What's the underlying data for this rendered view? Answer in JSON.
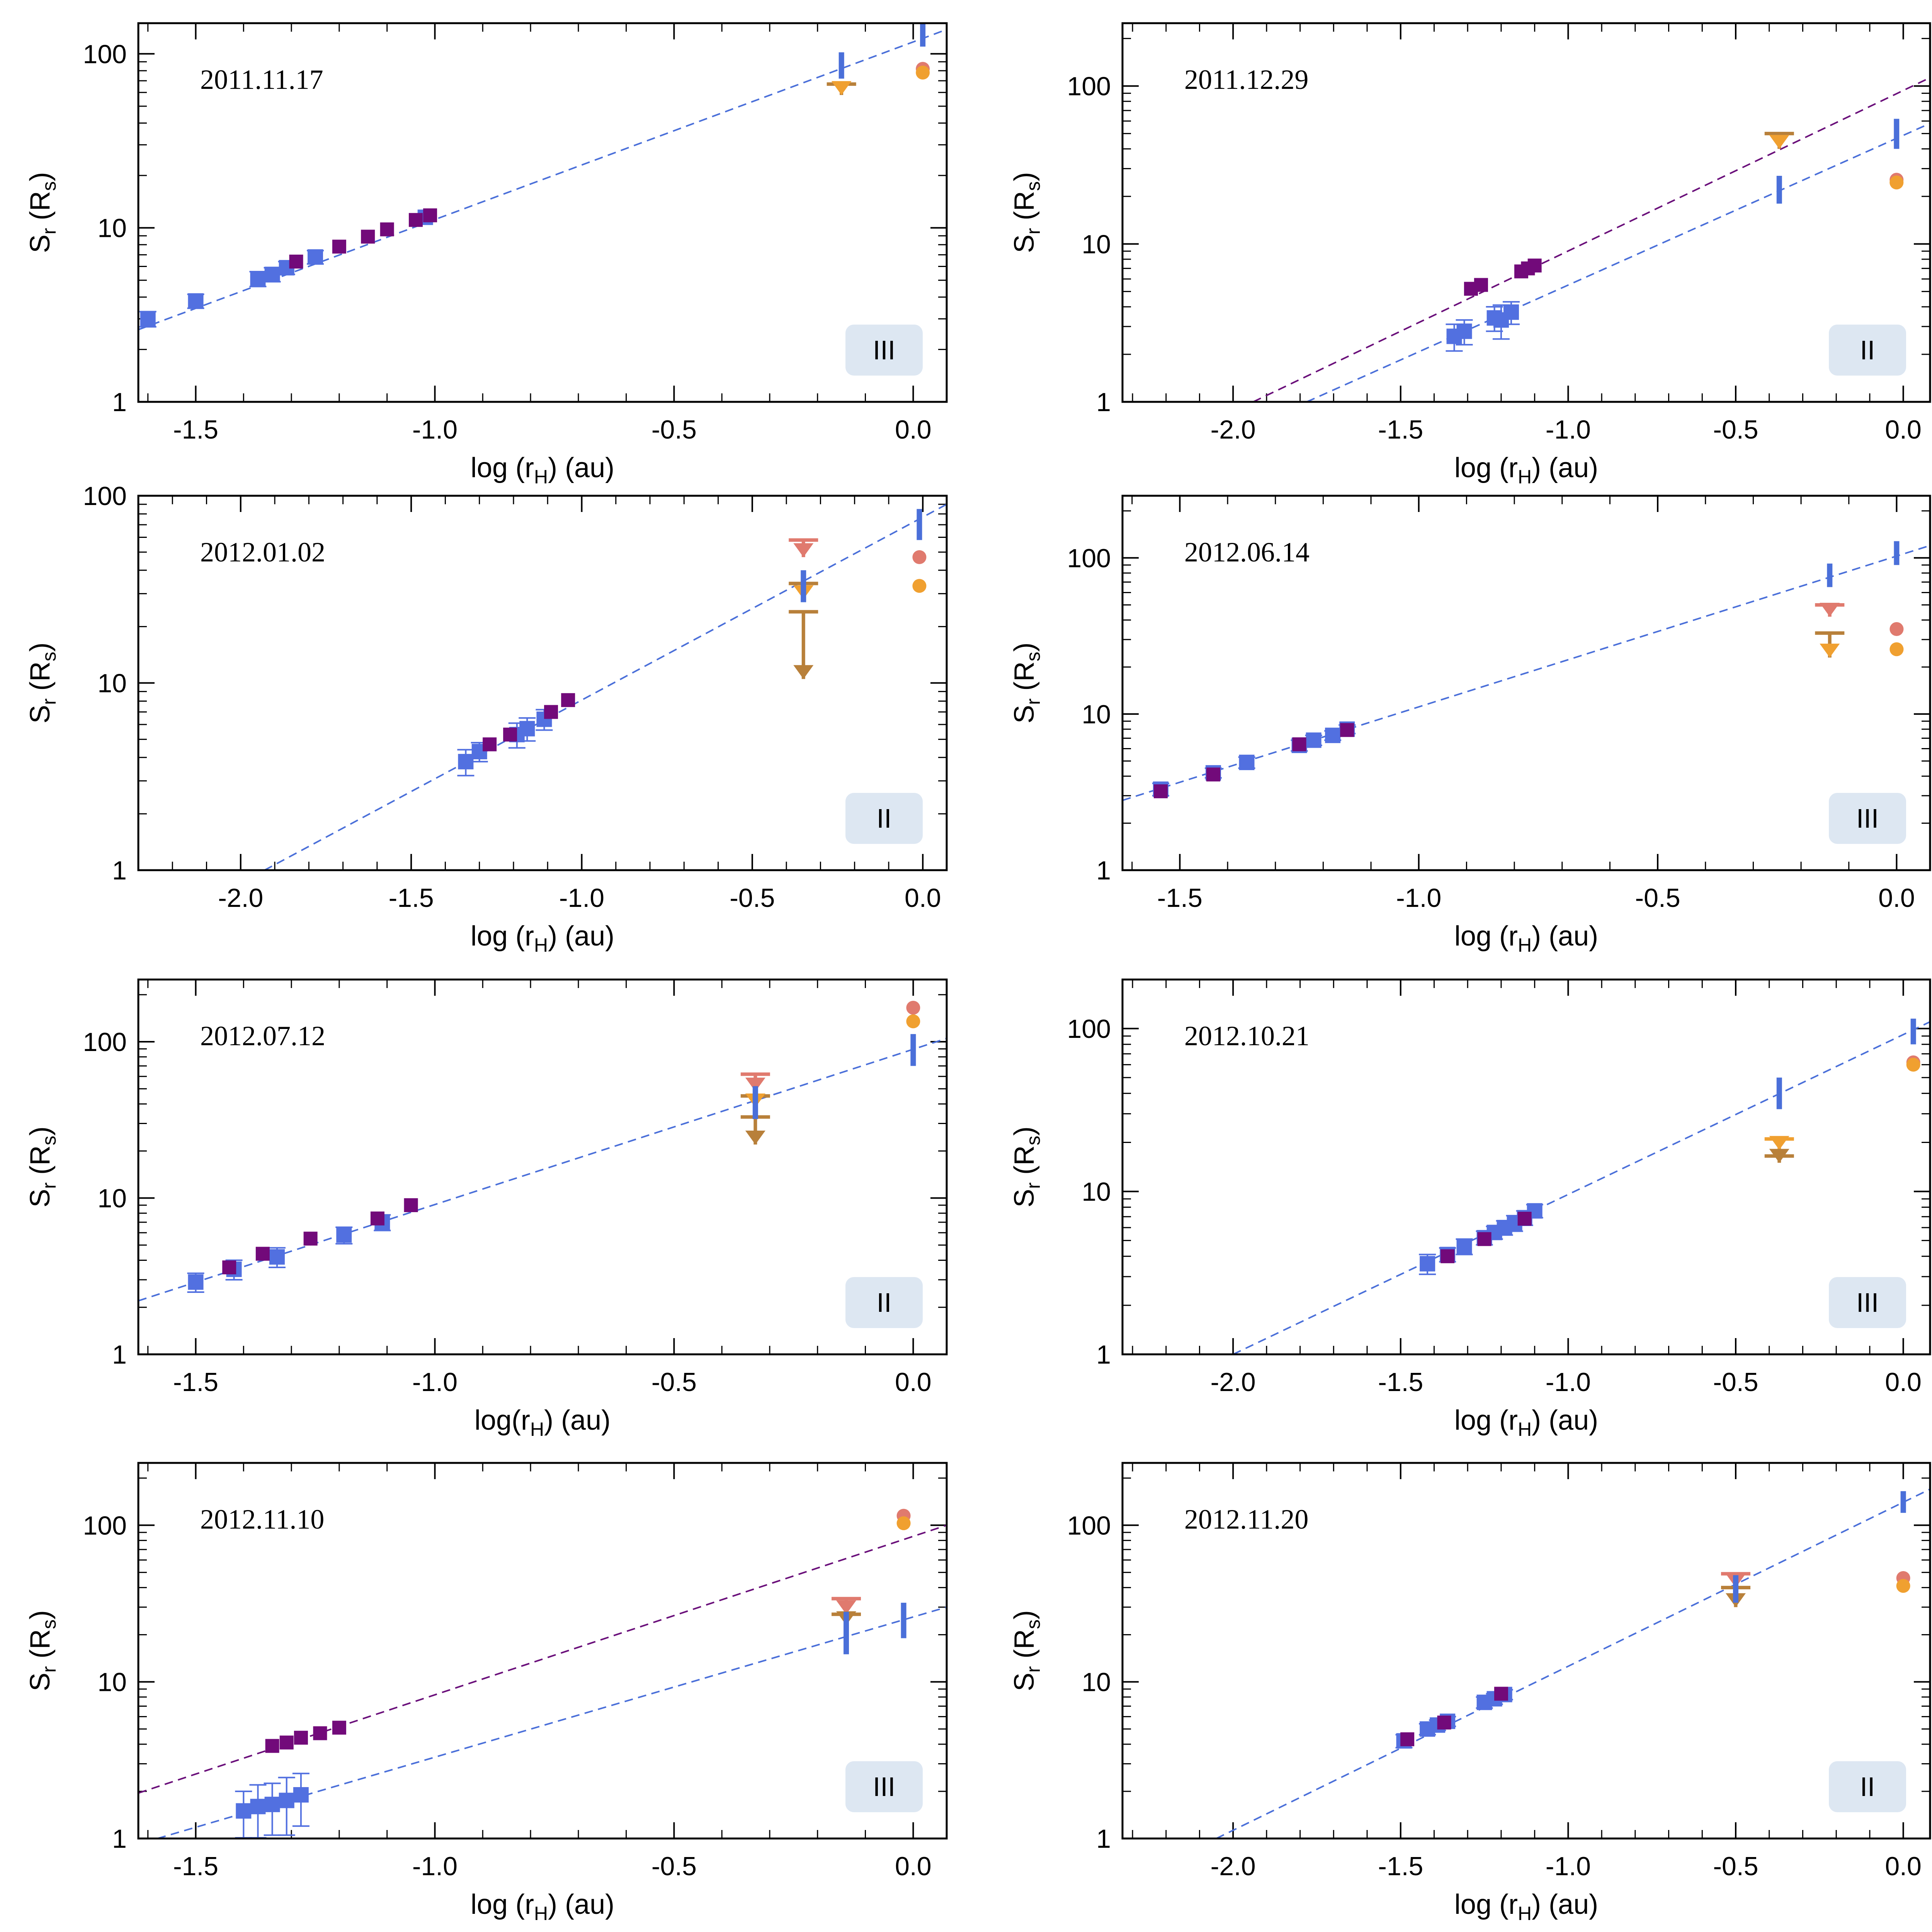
{
  "figure": {
    "colors": {
      "fit_blue": "#4a6fd9",
      "fit_purple": "#6a0f7a",
      "blue_point": "#5270e0",
      "purple_point": "#720a7a",
      "salmon": "#e07a6e",
      "orange": "#f0a030",
      "brown": "#b8803a",
      "badge_bg": "#dde7f2"
    }
  },
  "chart_data": [
    {
      "type": "scatter",
      "title": "2011.11.17",
      "badge": "III",
      "xlabel": "log (rH) (au)",
      "ylabel": "Sr (Rs)",
      "xlim": [
        -1.62,
        0.07
      ],
      "ylim": [
        1,
        150
      ],
      "log_y": true,
      "x_ticks": [
        "-1.5",
        "-1.0",
        "-0.5",
        "0.0"
      ],
      "x_tick_values": [
        -1.5,
        -1.0,
        -0.5,
        0.0
      ],
      "y_ticks": [
        "1",
        "10",
        "100"
      ],
      "y_tick_values": [
        1,
        10,
        100
      ],
      "fits": [
        {
          "color": "blue",
          "x": [
            -1.62,
            0.07
          ],
          "y": [
            2.6,
            138
          ]
        }
      ],
      "blue_points": [
        {
          "x": -1.6,
          "y": 3.0,
          "err": 0.3
        },
        {
          "x": -1.5,
          "y": 3.8,
          "err": 0.35
        },
        {
          "x": -1.37,
          "y": 5.1,
          "err": 0.5
        },
        {
          "x": -1.34,
          "y": 5.4,
          "err": 0.5
        },
        {
          "x": -1.31,
          "y": 5.9,
          "err": 0.5
        },
        {
          "x": -1.25,
          "y": 6.8,
          "err": 0.6
        },
        {
          "x": -1.02,
          "y": 11.5,
          "err": 0
        }
      ],
      "purple_points": [
        {
          "x": -1.29,
          "y": 6.4
        },
        {
          "x": -1.2,
          "y": 7.8
        },
        {
          "x": -1.14,
          "y": 8.9
        },
        {
          "x": -1.1,
          "y": 9.8
        },
        {
          "x": -1.04,
          "y": 11.1
        },
        {
          "x": -1.01,
          "y": 11.8
        }
      ],
      "bars": [
        {
          "x": -0.15,
          "y1": 72,
          "y2": 102
        },
        {
          "x": 0.02,
          "y1": 110,
          "y2": 150
        }
      ],
      "limits": [
        {
          "x": -0.15,
          "top": 67,
          "bottom": 58,
          "arrow_color": "orange",
          "bar_color": "brown"
        }
      ],
      "dots": [
        {
          "x": 0.02,
          "y": 82,
          "color": "salmon"
        },
        {
          "x": 0.02,
          "y": 78,
          "color": "orange"
        }
      ]
    },
    {
      "type": "scatter",
      "title": "2011.12.29",
      "badge": "II",
      "xlabel": "log (rH) (au)",
      "ylabel": "Sr (Rs)",
      "xlim": [
        -2.33,
        0.08
      ],
      "ylim": [
        1,
        250
      ],
      "log_y": true,
      "x_ticks": [
        "-2.0",
        "-1.5",
        "-1.0",
        "-0.5",
        "0.0"
      ],
      "x_tick_values": [
        -2.0,
        -1.5,
        -1.0,
        -0.5,
        0.0
      ],
      "y_ticks": [
        "1",
        "10",
        "100"
      ],
      "y_tick_values": [
        1,
        10,
        100
      ],
      "fits": [
        {
          "color": "purple",
          "x": [
            -1.94,
            0.08
          ],
          "y": [
            1.0,
            113
          ]
        },
        {
          "color": "blue",
          "x": [
            -1.78,
            0.08
          ],
          "y": [
            1.0,
            58
          ]
        }
      ],
      "blue_points": [
        {
          "x": -1.34,
          "y": 2.6,
          "err": 0.5
        },
        {
          "x": -1.31,
          "y": 2.8,
          "err": 0.5
        },
        {
          "x": -1.22,
          "y": 3.4,
          "err": 0.6
        },
        {
          "x": -1.2,
          "y": 3.3,
          "err": 0.8
        },
        {
          "x": -1.17,
          "y": 3.7,
          "err": 0.6
        }
      ],
      "purple_points": [
        {
          "x": -1.29,
          "y": 5.2
        },
        {
          "x": -1.26,
          "y": 5.5
        },
        {
          "x": -1.14,
          "y": 6.7
        },
        {
          "x": -1.12,
          "y": 7.0
        },
        {
          "x": -1.1,
          "y": 7.3
        }
      ],
      "bars": [
        {
          "x": -0.37,
          "y1": 18,
          "y2": 27
        },
        {
          "x": -0.02,
          "y1": 40,
          "y2": 62
        }
      ],
      "limits": [
        {
          "x": -0.37,
          "top": 50,
          "bottom": 40,
          "arrow_color": "orange",
          "bar_color": "brown"
        }
      ],
      "dots": [
        {
          "x": -0.02,
          "y": 25.5,
          "color": "salmon"
        },
        {
          "x": -0.02,
          "y": 24.5,
          "color": "orange"
        }
      ]
    },
    {
      "type": "scatter",
      "title": "2012.01.02",
      "badge": "II",
      "xlabel": "log (rH) (au)",
      "ylabel": "Sr (Rs)",
      "xlim": [
        -2.3,
        0.07
      ],
      "ylim": [
        1,
        100
      ],
      "log_y": true,
      "x_ticks": [
        "-2.0",
        "-1.5",
        "-1.0",
        "-0.5",
        "0.0"
      ],
      "x_tick_values": [
        -2.0,
        -1.5,
        -1.0,
        -0.5,
        0.0
      ],
      "y_ticks": [
        "1",
        "10",
        "100"
      ],
      "y_tick_values": [
        1,
        10,
        100
      ],
      "fits": [
        {
          "color": "blue",
          "x": [
            -1.93,
            0.07
          ],
          "y": [
            1.0,
            90
          ]
        }
      ],
      "blue_points": [
        {
          "x": -1.34,
          "y": 3.8,
          "err": 0.6
        },
        {
          "x": -1.3,
          "y": 4.3,
          "err": 0.5
        },
        {
          "x": -1.19,
          "y": 5.3,
          "err": 0.8
        },
        {
          "x": -1.16,
          "y": 5.7,
          "err": 0.8
        },
        {
          "x": -1.11,
          "y": 6.4,
          "err": 0.8
        }
      ],
      "purple_points": [
        {
          "x": -1.27,
          "y": 4.7
        },
        {
          "x": -1.21,
          "y": 5.3
        },
        {
          "x": -1.09,
          "y": 7.0
        },
        {
          "x": -1.04,
          "y": 8.1
        }
      ],
      "bars": [
        {
          "x": -0.35,
          "y1": 27,
          "y2": 40
        },
        {
          "x": -0.01,
          "y1": 58,
          "y2": 85
        }
      ],
      "limits": [
        {
          "x": -0.35,
          "top": 58,
          "bottom": 47,
          "arrow_color": "salmon",
          "bar_color": "salmon"
        },
        {
          "x": -0.35,
          "top": 34,
          "bottom": 28,
          "arrow_color": "orange",
          "bar_color": "brown"
        },
        {
          "x": -0.35,
          "top": 24,
          "bottom": 10.5,
          "arrow_color": "brown",
          "bar_color": "brown"
        }
      ],
      "dots": [
        {
          "x": -0.01,
          "y": 47,
          "color": "salmon"
        },
        {
          "x": -0.01,
          "y": 33,
          "color": "orange"
        }
      ]
    },
    {
      "type": "scatter",
      "title": "2012.06.14",
      "badge": "III",
      "xlabel": "log (rH) (au)",
      "ylabel": "Sr (Rs)",
      "xlim": [
        -1.62,
        0.07
      ],
      "ylim": [
        1,
        250
      ],
      "log_y": true,
      "x_ticks": [
        "-1.5",
        "-1.0",
        "-0.5",
        "0.0"
      ],
      "x_tick_values": [
        -1.5,
        -1.0,
        -0.5,
        0.0
      ],
      "y_ticks": [
        "1",
        "10",
        "100"
      ],
      "y_tick_values": [
        1,
        10,
        100
      ],
      "fits": [
        {
          "color": "blue",
          "x": [
            -1.62,
            0.07
          ],
          "y": [
            2.8,
            120
          ]
        }
      ],
      "blue_points": [
        {
          "x": -1.54,
          "y": 3.3,
          "err": 0.3
        },
        {
          "x": -1.43,
          "y": 4.2,
          "err": 0.3
        },
        {
          "x": -1.36,
          "y": 4.9,
          "err": 0.4
        },
        {
          "x": -1.25,
          "y": 6.3,
          "err": 0.5
        },
        {
          "x": -1.22,
          "y": 6.8,
          "err": 0.5
        },
        {
          "x": -1.18,
          "y": 7.3,
          "err": 0.5
        },
        {
          "x": -1.15,
          "y": 8.0,
          "err": 0.5
        }
      ],
      "purple_points": [
        {
          "x": -1.54,
          "y": 3.2
        },
        {
          "x": -1.43,
          "y": 4.1
        },
        {
          "x": -1.25,
          "y": 6.4
        },
        {
          "x": -1.15,
          "y": 7.9
        }
      ],
      "bars": [
        {
          "x": -0.14,
          "y1": 65,
          "y2": 92
        },
        {
          "x": 0.0,
          "y1": 90,
          "y2": 128
        }
      ],
      "limits": [
        {
          "x": -0.14,
          "top": 50,
          "bottom": 42,
          "arrow_color": "salmon",
          "bar_color": "salmon"
        },
        {
          "x": -0.14,
          "top": 33,
          "bottom": 23,
          "arrow_color": "orange",
          "bar_color": "brown"
        }
      ],
      "dots": [
        {
          "x": 0.0,
          "y": 35,
          "color": "salmon"
        },
        {
          "x": 0.0,
          "y": 26,
          "color": "orange"
        }
      ]
    },
    {
      "type": "scatter",
      "title": "2012.07.12",
      "badge": "II",
      "xlabel": "log(rH) (au)",
      "ylabel": "Sr (Rs)",
      "xlim": [
        -1.62,
        0.07
      ],
      "ylim": [
        1,
        250
      ],
      "log_y": true,
      "x_ticks": [
        "-1.5",
        "-1.0",
        "-0.5",
        "0.0"
      ],
      "x_tick_values": [
        -1.5,
        -1.0,
        -0.5,
        0.0
      ],
      "y_ticks": [
        "1",
        "10",
        "100"
      ],
      "y_tick_values": [
        1,
        10,
        100
      ],
      "fits": [
        {
          "color": "blue",
          "x": [
            -1.62,
            0.07
          ],
          "y": [
            2.2,
            105
          ]
        }
      ],
      "blue_points": [
        {
          "x": -1.5,
          "y": 2.9,
          "err": 0.4
        },
        {
          "x": -1.42,
          "y": 3.5,
          "err": 0.5
        },
        {
          "x": -1.33,
          "y": 4.2,
          "err": 0.6
        },
        {
          "x": -1.19,
          "y": 5.8,
          "err": 0.7
        },
        {
          "x": -1.11,
          "y": 7.0,
          "err": 0.8
        }
      ],
      "purple_points": [
        {
          "x": -1.43,
          "y": 3.6
        },
        {
          "x": -1.36,
          "y": 4.4
        },
        {
          "x": -1.26,
          "y": 5.5
        },
        {
          "x": -1.12,
          "y": 7.4
        },
        {
          "x": -1.05,
          "y": 9.0
        }
      ],
      "bars": [
        {
          "x": -0.33,
          "y1": 32,
          "y2": 52
        },
        {
          "x": 0.0,
          "y1": 70,
          "y2": 112
        }
      ],
      "limits": [
        {
          "x": -0.33,
          "top": 62,
          "bottom": 48,
          "arrow_color": "salmon",
          "bar_color": "salmon"
        },
        {
          "x": -0.33,
          "top": 45,
          "bottom": 38,
          "arrow_color": "orange",
          "bar_color": "brown"
        },
        {
          "x": -0.33,
          "top": 33,
          "bottom": 22,
          "arrow_color": "brown",
          "bar_color": "brown"
        }
      ],
      "dots": [
        {
          "x": 0.0,
          "y": 165,
          "color": "salmon"
        },
        {
          "x": 0.0,
          "y": 135,
          "color": "orange"
        }
      ]
    },
    {
      "type": "scatter",
      "title": "2012.10.21",
      "badge": "III",
      "xlabel": "log (rH) (au)",
      "ylabel": "Sr (Rs)",
      "xlim": [
        -2.33,
        0.08
      ],
      "ylim": [
        1,
        200
      ],
      "log_y": true,
      "x_ticks": [
        "-2.0",
        "-1.5",
        "-1.0",
        "-0.5",
        "0.0"
      ],
      "x_tick_values": [
        -2.0,
        -1.5,
        -1.0,
        -0.5,
        0.0
      ],
      "y_ticks": [
        "1",
        "10",
        "100"
      ],
      "y_tick_values": [
        1,
        10,
        100
      ],
      "fits": [
        {
          "color": "blue",
          "x": [
            -2.0,
            0.08
          ],
          "y": [
            1.0,
            110
          ]
        }
      ],
      "blue_points": [
        {
          "x": -1.42,
          "y": 3.6,
          "err": 0.5
        },
        {
          "x": -1.36,
          "y": 4.1,
          "err": 0.4
        },
        {
          "x": -1.31,
          "y": 4.6,
          "err": 0.5
        },
        {
          "x": -1.25,
          "y": 5.2,
          "err": 0.5
        },
        {
          "x": -1.22,
          "y": 5.6,
          "err": 0.5
        },
        {
          "x": -1.19,
          "y": 6.0,
          "err": 0.6
        },
        {
          "x": -1.16,
          "y": 6.4,
          "err": 0.7
        },
        {
          "x": -1.13,
          "y": 6.9,
          "err": 0.7
        },
        {
          "x": -1.1,
          "y": 7.6,
          "err": 0.7
        }
      ],
      "purple_points": [
        {
          "x": -1.36,
          "y": 4.0
        },
        {
          "x": -1.25,
          "y": 5.1
        },
        {
          "x": -1.13,
          "y": 6.8
        }
      ],
      "bars": [
        {
          "x": -0.37,
          "y1": 32,
          "y2": 50
        },
        {
          "x": 0.03,
          "y1": 80,
          "y2": 115
        }
      ],
      "limits": [
        {
          "x": -0.37,
          "top": 21,
          "bottom": 18,
          "arrow_color": "orange",
          "bar_color": "orange"
        },
        {
          "x": -0.37,
          "top": 16.5,
          "bottom": 15,
          "arrow_color": "brown",
          "bar_color": "brown"
        }
      ],
      "dots": [
        {
          "x": 0.03,
          "y": 62,
          "color": "salmon"
        },
        {
          "x": 0.03,
          "y": 60,
          "color": "orange"
        }
      ]
    },
    {
      "type": "scatter",
      "title": "2012.11.10",
      "badge": "III",
      "xlabel": "log (rH) (au)",
      "ylabel": "Sr (Rs)",
      "xlim": [
        -1.62,
        0.07
      ],
      "ylim": [
        1,
        250
      ],
      "log_y": true,
      "x_ticks": [
        "-1.5",
        "-1.0",
        "-0.5",
        "0.0"
      ],
      "x_tick_values": [
        -1.5,
        -1.0,
        -0.5,
        0.0
      ],
      "y_ticks": [
        "1",
        "10",
        "100"
      ],
      "y_tick_values": [
        1,
        10,
        100
      ],
      "fits": [
        {
          "color": "purple",
          "x": [
            -1.62,
            0.07
          ],
          "y": [
            1.95,
            100
          ]
        },
        {
          "color": "blue",
          "x": [
            -1.58,
            0.07
          ],
          "y": [
            1.0,
            30
          ]
        }
      ],
      "blue_points": [
        {
          "x": -1.4,
          "y": 1.5,
          "err": 0.5
        },
        {
          "x": -1.37,
          "y": 1.6,
          "err": 0.6
        },
        {
          "x": -1.34,
          "y": 1.65,
          "err": 0.6
        },
        {
          "x": -1.31,
          "y": 1.75,
          "err": 0.7
        },
        {
          "x": -1.28,
          "y": 1.9,
          "err": 0.7
        }
      ],
      "purple_points": [
        {
          "x": -1.34,
          "y": 3.9
        },
        {
          "x": -1.31,
          "y": 4.1
        },
        {
          "x": -1.28,
          "y": 4.4
        },
        {
          "x": -1.24,
          "y": 4.7
        },
        {
          "x": -1.2,
          "y": 5.1
        }
      ],
      "bars": [
        {
          "x": -0.14,
          "y1": 15,
          "y2": 28
        },
        {
          "x": -0.02,
          "y1": 19,
          "y2": 32
        }
      ],
      "limits": [
        {
          "x": -0.14,
          "top": 34,
          "bottom": 27,
          "arrow_color": "salmon",
          "bar_color": "salmon"
        },
        {
          "x": -0.14,
          "top": 27,
          "bottom": 23,
          "arrow_color": "brown",
          "bar_color": "brown"
        }
      ],
      "dots": [
        {
          "x": -0.02,
          "y": 115,
          "color": "salmon"
        },
        {
          "x": -0.02,
          "y": 103,
          "color": "orange"
        }
      ]
    },
    {
      "type": "scatter",
      "title": "2012.11.20",
      "badge": "II",
      "xlabel": "log (rH) (au)",
      "ylabel": "Sr (Rs)",
      "xlim": [
        -2.33,
        0.08
      ],
      "ylim": [
        1,
        250
      ],
      "log_y": true,
      "x_ticks": [
        "-2.0",
        "-1.5",
        "-1.0",
        "-0.5",
        "0.0"
      ],
      "x_tick_values": [
        -2.0,
        -1.5,
        -1.0,
        -0.5,
        0.0
      ],
      "y_ticks": [
        "1",
        "10",
        "100"
      ],
      "y_tick_values": [
        1,
        10,
        100
      ],
      "fits": [
        {
          "color": "blue",
          "x": [
            -2.05,
            0.08
          ],
          "y": [
            1.0,
            170
          ]
        }
      ],
      "blue_points": [
        {
          "x": -1.49,
          "y": 4.2,
          "err": 0.4
        },
        {
          "x": -1.42,
          "y": 5.0,
          "err": 0.4
        },
        {
          "x": -1.39,
          "y": 5.3,
          "err": 0.4
        },
        {
          "x": -1.36,
          "y": 5.6,
          "err": 0.4
        },
        {
          "x": -1.25,
          "y": 7.4,
          "err": 0.6
        },
        {
          "x": -1.22,
          "y": 7.8,
          "err": 0.6
        },
        {
          "x": -1.19,
          "y": 8.3,
          "err": 0.6
        }
      ],
      "purple_points": [
        {
          "x": -1.48,
          "y": 4.3
        },
        {
          "x": -1.37,
          "y": 5.5
        },
        {
          "x": -1.2,
          "y": 8.4
        }
      ],
      "bars": [
        {
          "x": -0.5,
          "y1": 32,
          "y2": 48
        },
        {
          "x": 0.0,
          "y1": 120,
          "y2": 165
        }
      ],
      "limits": [
        {
          "x": -0.5,
          "top": 49,
          "bottom": 40,
          "arrow_color": "salmon",
          "bar_color": "salmon"
        },
        {
          "x": -0.5,
          "top": 40,
          "bottom": 30,
          "arrow_color": "brown",
          "bar_color": "brown"
        }
      ],
      "dots": [
        {
          "x": 0.0,
          "y": 46,
          "color": "salmon"
        },
        {
          "x": 0.0,
          "y": 41,
          "color": "orange"
        }
      ]
    }
  ]
}
